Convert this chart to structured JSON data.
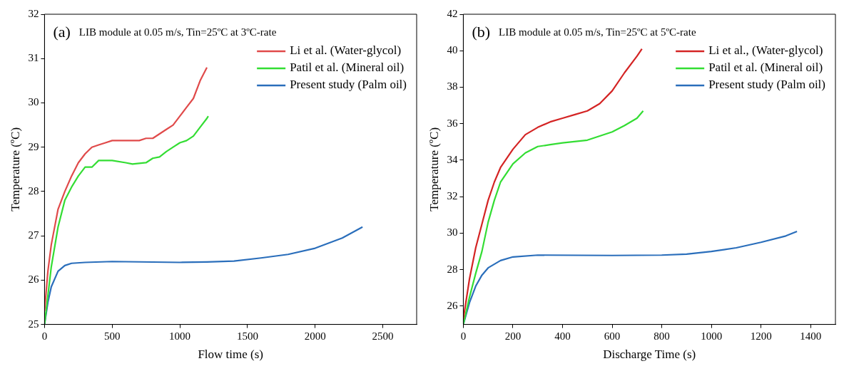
{
  "chart_data": [
    {
      "type": "line",
      "annotations": [
        "(a)",
        "LIB module at 0.05 m/s, Tin=25ºC at 3ºC-rate"
      ],
      "xlabel": "Flow time (s)",
      "ylabel": "Temperature (ºC)",
      "xlim": [
        0,
        2750
      ],
      "xticks": [
        0,
        500,
        1000,
        1500,
        2000,
        2500
      ],
      "ylim": [
        25,
        32
      ],
      "yticks": [
        25,
        26,
        27,
        28,
        29,
        30,
        31,
        32
      ],
      "legend": "top right",
      "grid": false,
      "series": [
        {
          "name": "Li et al. (Water-glycol)",
          "color": "#e04a4a",
          "x": [
            0,
            25,
            50,
            100,
            150,
            200,
            250,
            300,
            350,
            400,
            450,
            500,
            600,
            700,
            750,
            800,
            850,
            900,
            950,
            1000,
            1050,
            1100,
            1150,
            1200
          ],
          "values": [
            25.3,
            26.2,
            26.8,
            27.6,
            28.0,
            28.35,
            28.65,
            28.85,
            29.0,
            29.05,
            29.1,
            29.15,
            29.15,
            29.15,
            29.2,
            29.2,
            29.3,
            29.4,
            29.5,
            29.7,
            29.9,
            30.1,
            30.5,
            30.8
          ]
        },
        {
          "name": "Patil et al. (Mineral oil)",
          "color": "#33dd33",
          "x": [
            0,
            50,
            100,
            150,
            200,
            250,
            300,
            350,
            400,
            450,
            500,
            600,
            650,
            750,
            800,
            850,
            900,
            950,
            1000,
            1050,
            1100,
            1150,
            1200,
            1210
          ],
          "values": [
            25.0,
            26.3,
            27.2,
            27.8,
            28.1,
            28.35,
            28.55,
            28.55,
            28.7,
            28.7,
            28.7,
            28.65,
            28.62,
            28.65,
            28.75,
            28.78,
            28.9,
            29.0,
            29.1,
            29.15,
            29.25,
            29.45,
            29.65,
            29.7
          ]
        },
        {
          "name": "Present study (Palm oil)",
          "color": "#2a6ebb",
          "x": [
            0,
            25,
            50,
            100,
            150,
            200,
            300,
            500,
            1000,
            1200,
            1400,
            1600,
            1800,
            2000,
            2200,
            2350
          ],
          "values": [
            25.0,
            25.5,
            25.85,
            26.2,
            26.33,
            26.38,
            26.4,
            26.42,
            26.4,
            26.41,
            26.43,
            26.5,
            26.58,
            26.72,
            26.95,
            27.2
          ]
        }
      ]
    },
    {
      "type": "line",
      "annotations": [
        "(b)",
        "LIB module at 0.05 m/s, Tin=25ºC at 5ºC-rate"
      ],
      "xlabel": "Discharge Time (s)",
      "ylabel": "Temperature (ºC)",
      "xlim": [
        0,
        1500
      ],
      "xticks": [
        0,
        200,
        400,
        600,
        800,
        1000,
        1200,
        1400
      ],
      "ylim": [
        25,
        42
      ],
      "yticks": [
        26,
        28,
        30,
        32,
        34,
        36,
        38,
        40,
        42
      ],
      "legend": "top right",
      "grid": false,
      "series": [
        {
          "name": "Li et al., (Water-glycol)",
          "color": "#d42424",
          "x": [
            0,
            25,
            50,
            75,
            100,
            125,
            150,
            200,
            250,
            300,
            350,
            400,
            450,
            500,
            550,
            600,
            650,
            700,
            720
          ],
          "values": [
            25.3,
            27.5,
            29.2,
            30.5,
            31.8,
            32.8,
            33.6,
            34.6,
            35.4,
            35.8,
            36.1,
            36.3,
            36.5,
            36.7,
            37.1,
            37.8,
            38.8,
            39.7,
            40.1
          ]
        },
        {
          "name": "Patil et al. (Mineral oil)",
          "color": "#33dd33",
          "x": [
            0,
            25,
            50,
            75,
            100,
            125,
            150,
            200,
            250,
            300,
            350,
            400,
            500,
            600,
            650,
            700,
            725
          ],
          "values": [
            25.0,
            26.5,
            27.8,
            29.0,
            30.6,
            31.8,
            32.8,
            33.8,
            34.4,
            34.75,
            34.85,
            34.95,
            35.1,
            35.55,
            35.9,
            36.3,
            36.7
          ]
        },
        {
          "name": "Present study (Palm oil)",
          "color": "#2a6ebb",
          "x": [
            0,
            25,
            50,
            75,
            100,
            150,
            200,
            300,
            600,
            800,
            900,
            1000,
            1100,
            1200,
            1300,
            1345
          ],
          "values": [
            25.0,
            26.2,
            27.1,
            27.7,
            28.1,
            28.5,
            28.7,
            28.8,
            28.78,
            28.8,
            28.85,
            29.0,
            29.2,
            29.5,
            29.85,
            30.1
          ]
        }
      ]
    }
  ]
}
